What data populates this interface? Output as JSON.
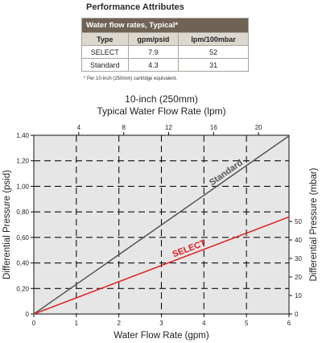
{
  "attributes": {
    "title": "Performance Attributes",
    "banner": "Water flow rates, Typical*",
    "columns": [
      "Type",
      "gpm/psid",
      "lpm/100mbar"
    ],
    "rows": [
      [
        "SELECT",
        "7.9",
        "52"
      ],
      [
        "Standard",
        "4.3",
        "31"
      ]
    ],
    "footnote": "* Per 10-inch (250mm) cartridge equivalent."
  },
  "chart_data": {
    "type": "line",
    "title": "10-inch (250mm)",
    "subtitle": "Typical Water Flow Rate (lpm)",
    "xlabel": "Water Flow Rate (gpm)",
    "ylabel": "Differential Pressure (psid)",
    "y2label": "Differential Pressure (mbar)",
    "xlim": [
      0,
      6
    ],
    "ylim": [
      0,
      1.4
    ],
    "x_ticks": [
      "0",
      "1",
      "2",
      "3",
      "4",
      "5",
      "6"
    ],
    "y_ticks": [
      "0",
      "0,20",
      "0,40",
      "0,60",
      "0,80",
      "1,00",
      "1,20",
      "1,40"
    ],
    "x2_range": [
      0,
      22.71
    ],
    "x2_ticks": [
      "4",
      "8",
      "12",
      "16",
      "20"
    ],
    "y2_range": [
      0,
      96.53
    ],
    "y2_ticks": [
      "0",
      "10",
      "20",
      "30",
      "40",
      "50"
    ],
    "grid": true,
    "series": [
      {
        "name": "Standard",
        "x": [
          0,
          6
        ],
        "y": [
          0,
          1.395
        ],
        "color": "#555555"
      },
      {
        "name": "SELECT",
        "x": [
          0,
          6
        ],
        "y": [
          0,
          0.76
        ],
        "color": "#e02020"
      }
    ]
  }
}
